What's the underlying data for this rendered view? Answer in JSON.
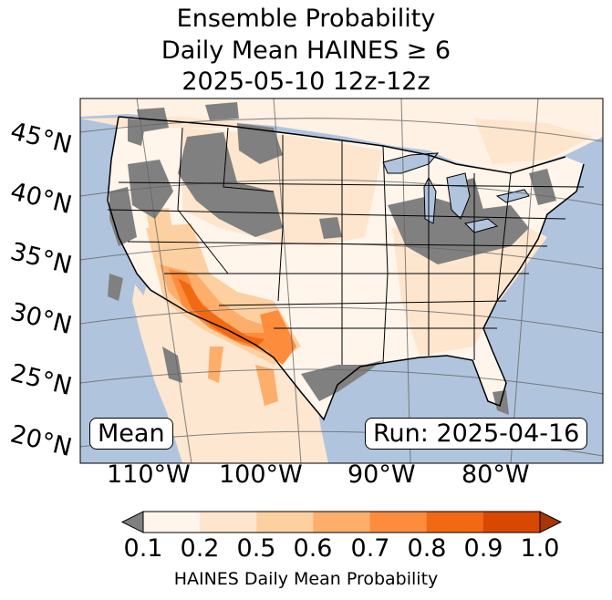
{
  "title": {
    "line1": "Ensemble Probability",
    "line2": "Daily Mean HAINES ≥ 6",
    "line3": "2025-05-10 12z-12z"
  },
  "map": {
    "extent_lon": [
      -120,
      -65
    ],
    "extent_lat": [
      20,
      50
    ],
    "lat_labels": [
      "45°N",
      "40°N",
      "35°N",
      "30°N",
      "25°N",
      "20°N"
    ],
    "lon_labels": [
      "110°W",
      "100°W",
      "90°W",
      "80°W"
    ],
    "colors": {
      "ocean": "#b0c4de",
      "missing": "#808080",
      "lowest": "#fff5eb",
      "state_line": "#000000",
      "grid_line": "#666666"
    }
  },
  "labels": {
    "stat": "Mean",
    "run": "Run: 2025-04-16"
  },
  "colorbar": {
    "ticks": [
      "0.1",
      "0.2",
      "0.5",
      "0.6",
      "0.7",
      "0.8",
      "0.9",
      "1.0"
    ],
    "colors": [
      "#fff5eb",
      "#fee6ce",
      "#fdd0a2",
      "#fdae6b",
      "#fd8d3c",
      "#f16913",
      "#d94801"
    ],
    "under_color": "#808080",
    "over_color": "#a63603",
    "label": "HAINES Daily Mean Probability"
  }
}
